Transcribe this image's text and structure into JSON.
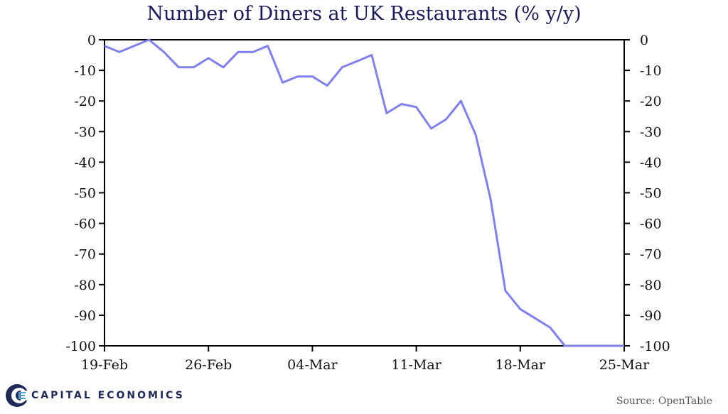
{
  "title": "Number of Diners at UK Restaurants (% y/y)",
  "source": "Source: OpenTable",
  "logo": {
    "name": "CAPITAL ECONOMICS"
  },
  "colors": {
    "line": "#8080ee",
    "title": "#1a1a5e",
    "axis": "#000000",
    "logo": "#1d2a57"
  },
  "chart_data": {
    "type": "line",
    "title": "Number of Diners at UK Restaurants (% y/y)",
    "xlabel": "",
    "ylabel": "",
    "ylim": [
      -100,
      0
    ],
    "yticks": [
      0,
      -10,
      -20,
      -30,
      -40,
      -50,
      -60,
      -70,
      -80,
      -90,
      -100
    ],
    "xticks": [
      "19-Feb",
      "26-Feb",
      "04-Mar",
      "11-Mar",
      "18-Mar",
      "25-Mar"
    ],
    "grid": false,
    "secondary_y_axis": "mirror",
    "x": [
      "19-Feb",
      "20-Feb",
      "21-Feb",
      "22-Feb",
      "23-Feb",
      "24-Feb",
      "25-Feb",
      "26-Feb",
      "27-Feb",
      "28-Feb",
      "29-Feb",
      "01-Mar",
      "02-Mar",
      "03-Mar",
      "04-Mar",
      "05-Mar",
      "06-Mar",
      "07-Mar",
      "08-Mar",
      "09-Mar",
      "10-Mar",
      "11-Mar",
      "12-Mar",
      "13-Mar",
      "14-Mar",
      "15-Mar",
      "16-Mar",
      "17-Mar",
      "18-Mar",
      "19-Mar",
      "20-Mar",
      "21-Mar",
      "22-Mar",
      "23-Mar",
      "24-Mar",
      "25-Mar"
    ],
    "series": [
      {
        "values": [
          -2,
          -4,
          -2,
          0,
          -4,
          -9,
          -9,
          -6,
          -9,
          -4,
          -4,
          -2,
          -14,
          -12,
          -12,
          -15,
          -9,
          -7,
          -5,
          -24,
          -21,
          -22,
          -29,
          -26,
          -20,
          -31,
          -52,
          -82,
          -88,
          -91,
          -94,
          -100,
          -100,
          -100,
          -100,
          -100
        ]
      }
    ]
  }
}
